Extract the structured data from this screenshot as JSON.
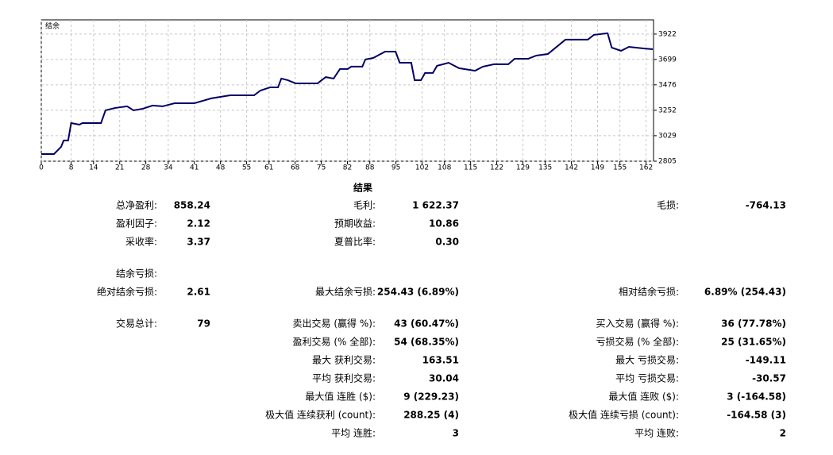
{
  "chart_data": {
    "type": "line",
    "label": "结余",
    "x": [
      0,
      3.4,
      5.3,
      6,
      7.2,
      8,
      10.2,
      11,
      16,
      17.2,
      19.8,
      23,
      24.7,
      27.2,
      29.8,
      32.5,
      35.7,
      41,
      45.5,
      50.6,
      57,
      58.7,
      61.3,
      63.4,
      64.3,
      66,
      68.1,
      74,
      76.2,
      78.3,
      80,
      82.1,
      83,
      86,
      86.8,
      88.9,
      92.1,
      94.9,
      96,
      99.1,
      100,
      101.7,
      102.8,
      104.9,
      106,
      109.1,
      111.9,
      116.2,
      118.3,
      121.3,
      125.1,
      126.8,
      130.4,
      132.6,
      135.7,
      140.4,
      146.4,
      148,
      151.7,
      152.8,
      155.3,
      157.4,
      161.3,
      163.8
    ],
    "series": [
      {
        "name": "结余",
        "color": "#000066",
        "values": [
          2868,
          2868,
          2931,
          2987,
          2987,
          3140,
          3126,
          3140,
          3140,
          3252,
          3273,
          3287,
          3252,
          3266,
          3294,
          3287,
          3314,
          3314,
          3357,
          3384,
          3384,
          3426,
          3454,
          3454,
          3531,
          3517,
          3489,
          3489,
          3544,
          3531,
          3615,
          3615,
          3636,
          3636,
          3699,
          3712,
          3768,
          3768,
          3670,
          3670,
          3517,
          3517,
          3580,
          3580,
          3643,
          3670,
          3622,
          3600,
          3636,
          3657,
          3657,
          3705,
          3705,
          3733,
          3747,
          3873,
          3873,
          3915,
          3929,
          3803,
          3775,
          3810,
          3796,
          3789
        ]
      }
    ],
    "xlim": [
      0,
      164
    ],
    "ylim": [
      2805,
      4047
    ],
    "xticks": [
      0,
      8,
      14,
      21,
      28,
      34,
      41,
      48,
      55,
      61,
      68,
      75,
      82,
      88,
      95,
      102,
      108,
      115,
      122,
      129,
      135,
      142,
      149,
      155,
      162
    ],
    "yticks": [
      2805,
      3029,
      3252,
      3476,
      3699,
      3922
    ],
    "grid": true
  },
  "report": {
    "title": "结果",
    "rows": [
      {
        "c1": {
          "label": "总净盈利:",
          "value": "858.24"
        },
        "c2": {
          "label": "毛利:",
          "value": "1 622.37"
        },
        "c3": {
          "label": "毛损:",
          "value": "-764.13"
        }
      },
      {
        "c1": {
          "label": "盈利因子:",
          "value": "2.12"
        },
        "c2": {
          "label": "预期收益:",
          "value": "10.86"
        }
      },
      {
        "c1": {
          "label": "采收率:",
          "value": "3.37"
        },
        "c2": {
          "label": "夏普比率:",
          "value": "0.30"
        }
      },
      {
        "c1": {
          "label": "结余亏损:"
        }
      },
      {
        "c1": {
          "label": "绝对结余亏损:",
          "value": "2.61"
        },
        "c2": {
          "label": "最大结余亏损:",
          "value": "254.43 (6.89%)"
        },
        "c3": {
          "label": "相对结余亏损:",
          "value": "6.89% (254.43)"
        }
      },
      {
        "c1": {
          "label": "交易总计:",
          "value": "79"
        },
        "c2": {
          "label": "卖出交易 (赢得 %):",
          "value": "43 (60.47%)"
        },
        "c3": {
          "label": "买入交易 (赢得 %):",
          "value": "36 (77.78%)"
        }
      },
      {
        "c2": {
          "label": "盈利交易 (% 全部):",
          "value": "54 (68.35%)"
        },
        "c3": {
          "label": "亏损交易 (% 全部):",
          "value": "25 (31.65%)"
        }
      },
      {
        "c2": {
          "label": "最大 获利交易:",
          "value": "163.51"
        },
        "c3": {
          "label": "最大 亏损交易:",
          "value": "-149.11"
        }
      },
      {
        "c2": {
          "label": "平均 获利交易:",
          "value": "30.04"
        },
        "c3": {
          "label": "平均 亏损交易:",
          "value": "-30.57"
        }
      },
      {
        "c2": {
          "label": "最大值 连胜 ($):",
          "value": "9 (229.23)"
        },
        "c3": {
          "label": "最大值 连败 ($):",
          "value": "3 (-164.58)"
        }
      },
      {
        "c2": {
          "label": "极大值 连续获利 (count):",
          "value": "288.25 (4)"
        },
        "c3": {
          "label": "极大值 连续亏损 (count):",
          "value": "-164.58 (3)"
        }
      },
      {
        "c2": {
          "label": "平均 连胜:",
          "value": "3"
        },
        "c3": {
          "label": "平均 连败:",
          "value": "2"
        }
      }
    ]
  }
}
